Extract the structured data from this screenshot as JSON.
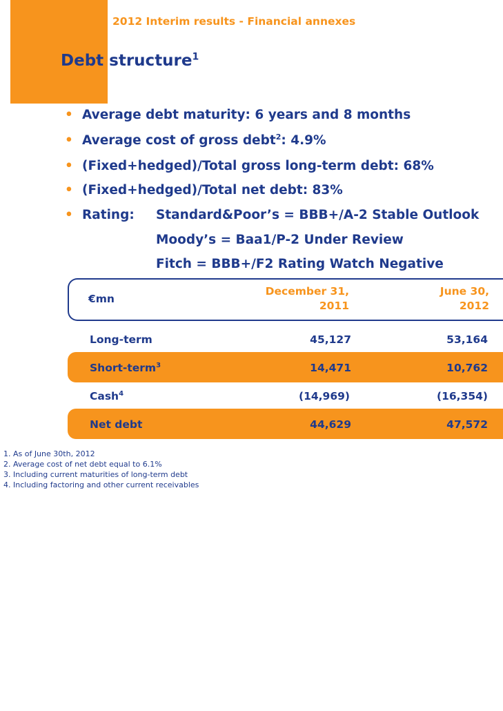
{
  "header": {
    "title": "2012 Interim results - Financial annexes"
  },
  "page": {
    "title_main": "Debt structure",
    "title_sup": "1"
  },
  "bullets": [
    {
      "text": "Average debt maturity: 6 years and 8 months"
    },
    {
      "text_before": "Average cost of gross debt",
      "sup": "2",
      "text_after": ": 4.9%"
    },
    {
      "text": "(Fixed+hedged)/Total gross long-term debt: 68%"
    },
    {
      "text": "(Fixed+hedged)/Total net debt: 83%"
    },
    {
      "label": "Rating:",
      "lines": [
        "Standard&Poor’s = BBB+/A-2 Stable Outlook",
        "Moody’s = Baa1/P-2 Under Review",
        "Fitch = BBB+/F2 Rating Watch Negative"
      ]
    }
  ],
  "table": {
    "unit": "€mn",
    "columns": [
      {
        "line1": "December 31,",
        "line2": "2011"
      },
      {
        "line1": "June 30,",
        "line2": "2012"
      }
    ],
    "rows": [
      {
        "label": "Long-term",
        "sup": "",
        "values": [
          "45,127",
          "53,164"
        ]
      },
      {
        "label": "Short-term",
        "sup": "3",
        "values": [
          "14,471",
          "10,762"
        ]
      },
      {
        "label": "Cash",
        "sup": "4",
        "values": [
          "(14,969)",
          "(16,354)"
        ]
      },
      {
        "label": "Net debt",
        "sup": "",
        "values": [
          "44,629",
          "47,572"
        ]
      }
    ]
  },
  "footnotes": [
    "1. As of June 30th, 2012",
    "2. Average cost of net debt equal to 6.1%",
    "3. Including current maturities of long-term debt",
    "4. Including factoring and other current receivables"
  ],
  "colors": {
    "accent": "#f7941d",
    "text": "#1f3a8c"
  }
}
